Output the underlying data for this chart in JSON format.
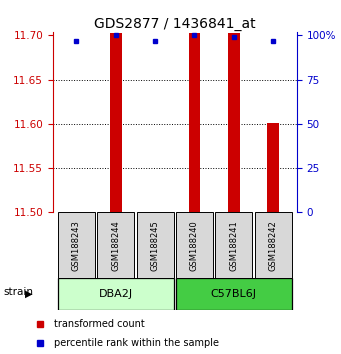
{
  "title": "GDS2877 / 1436841_at",
  "samples": [
    "GSM188243",
    "GSM188244",
    "GSM188245",
    "GSM188240",
    "GSM188241",
    "GSM188242"
  ],
  "groups": [
    {
      "name": "DBA2J",
      "indices": [
        0,
        1,
        2
      ],
      "color": "#ccffcc"
    },
    {
      "name": "C57BL6J",
      "indices": [
        3,
        4,
        5
      ],
      "color": "#44cc44"
    }
  ],
  "red_values": [
    11.5,
    11.703,
    11.5,
    11.703,
    11.703,
    11.601
  ],
  "blue_percentiles": [
    97,
    100,
    97,
    100,
    99,
    97
  ],
  "ymin": 11.5,
  "ymax": 11.7,
  "yticks": [
    11.5,
    11.55,
    11.6,
    11.65,
    11.7
  ],
  "right_yticks": [
    0,
    25,
    50,
    75,
    100
  ],
  "grid_values": [
    11.55,
    11.6,
    11.65
  ],
  "bar_color": "#cc0000",
  "dot_color": "#0000cc",
  "left_axis_color": "#cc0000",
  "right_axis_color": "#0000cc",
  "bar_width": 0.3,
  "title_fontsize": 10,
  "tick_fontsize": 7.5,
  "sample_fontsize": 6,
  "group_fontsize": 8,
  "legend_fontsize": 7
}
